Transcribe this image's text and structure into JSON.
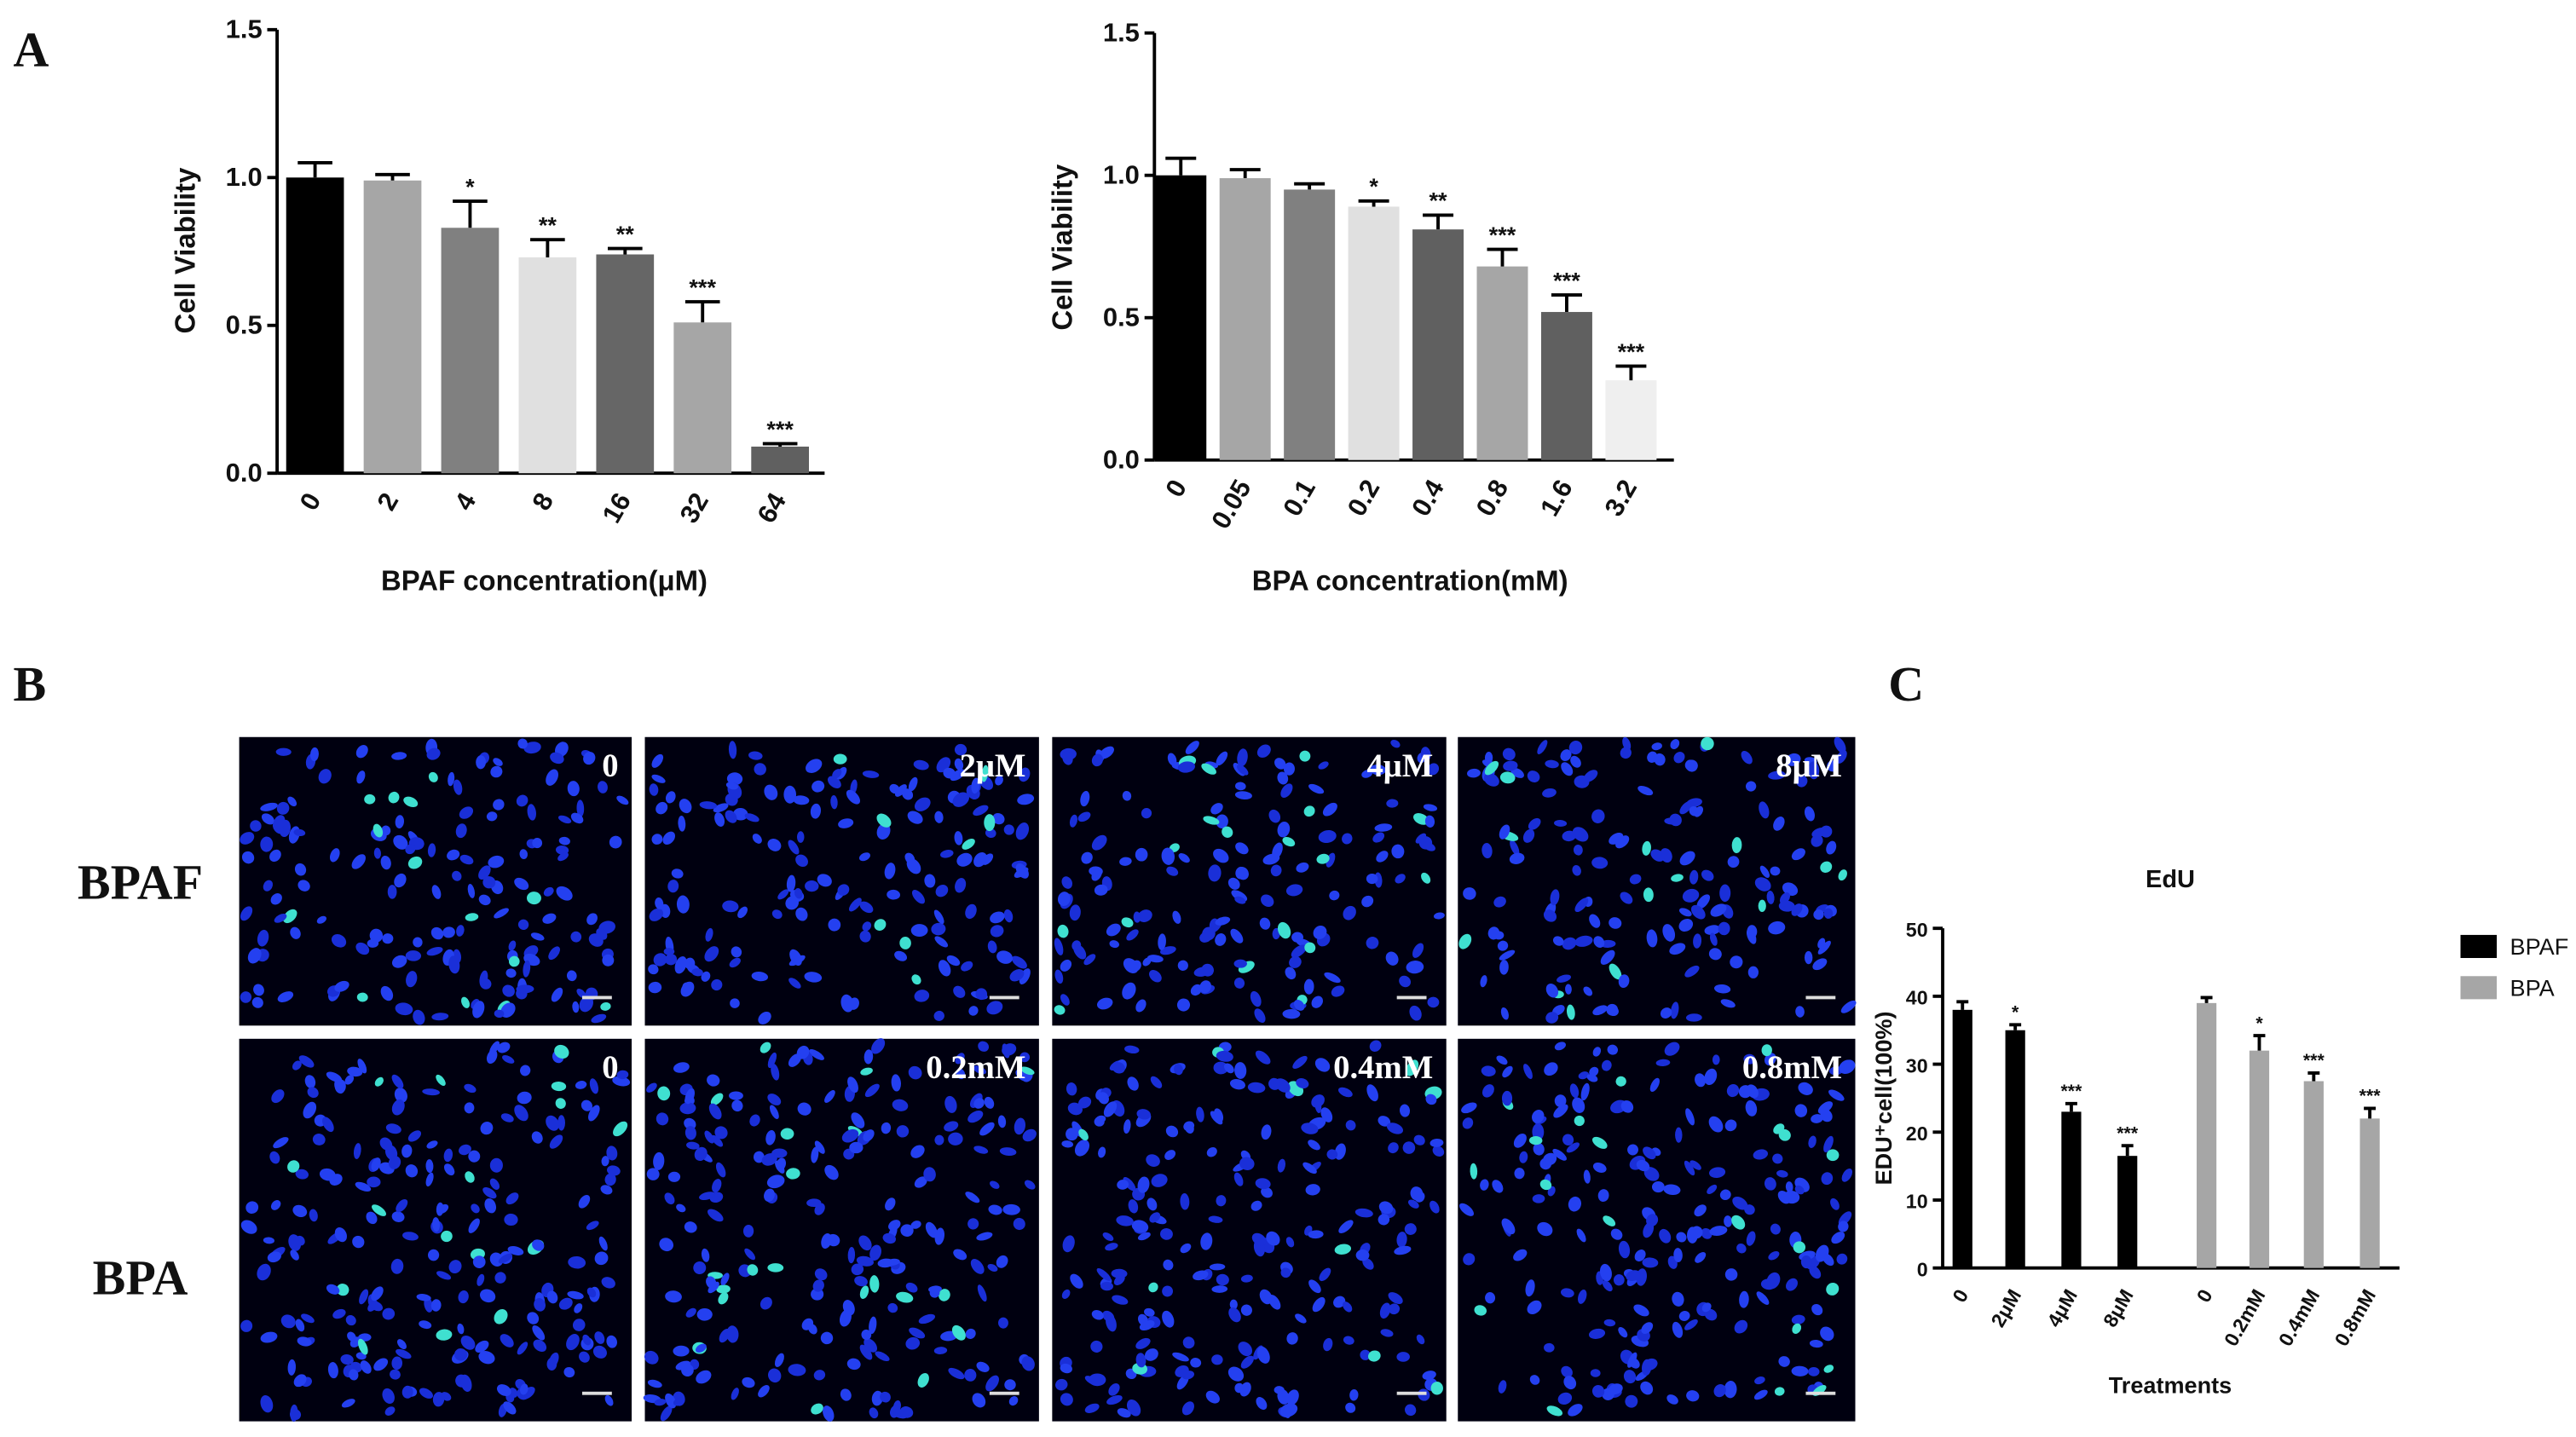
{
  "figure": {
    "panel_labels": [
      "A",
      "B",
      "C"
    ],
    "row_labels": [
      "BPAF",
      "BPA"
    ],
    "image_labels": [
      [
        "0",
        "2μM",
        "4μM",
        "8μM"
      ],
      [
        "0",
        "0.2mM",
        "0.4mM",
        "0.8mM"
      ]
    ]
  },
  "chart_data": [
    {
      "type": "bar",
      "ylabel": "Cell Viability",
      "xlabel": "BPAF concentration(μM)",
      "categories": [
        "0",
        "2",
        "4",
        "8",
        "16",
        "32",
        "64"
      ],
      "values": [
        1.0,
        0.99,
        0.83,
        0.73,
        0.74,
        0.51,
        0.09
      ],
      "errors": [
        0.05,
        0.02,
        0.09,
        0.06,
        0.02,
        0.07,
        0.01
      ],
      "significance": [
        null,
        null,
        "*",
        "**",
        "**",
        "***",
        "***"
      ],
      "colors": [
        "#000000",
        "#a6a6a6",
        "#808080",
        "#e0e0e0",
        "#666666",
        "#a6a6a6",
        "#606060"
      ],
      "ylim": [
        0,
        1.5
      ],
      "yticks": [
        {
          "value": 0,
          "label": "0.0"
        },
        0.5,
        {
          "value": 1,
          "label": "1.0"
        },
        1.5
      ]
    },
    {
      "type": "bar",
      "ylabel": "Cell Viability",
      "xlabel": "BPA concentration(mM)",
      "categories": [
        "0",
        "0.05",
        "0.1",
        "0.2",
        "0.4",
        "0.8",
        "1.6",
        "3.2"
      ],
      "values": [
        1.0,
        0.99,
        0.95,
        0.89,
        0.81,
        0.68,
        0.52,
        0.28
      ],
      "errors": [
        0.06,
        0.03,
        0.02,
        0.02,
        0.05,
        0.06,
        0.06,
        0.05
      ],
      "significance": [
        null,
        null,
        null,
        "*",
        "**",
        "***",
        "***",
        "***"
      ],
      "colors": [
        "#000000",
        "#a6a6a6",
        "#808080",
        "#e0e0e0",
        "#606060",
        "#a6a6a6",
        "#606060",
        "#efefef"
      ],
      "ylim": [
        0,
        1.5
      ],
      "yticks": [
        {
          "value": 0,
          "label": "0.0"
        },
        0.5,
        {
          "value": 1,
          "label": "1.0"
        },
        1.5
      ]
    },
    {
      "type": "bar",
      "title": "EdU",
      "ylabel": "EDU⁺cell(100%)",
      "xlabel": "Treatments",
      "categories": [
        "0",
        "2μM",
        "4μM",
        "8μM",
        "0",
        "0.2mM",
        "0.4mM",
        "0.8mM"
      ],
      "series": [
        {
          "name": "BPAF",
          "color": "#000000",
          "values": [
            38,
            35,
            23,
            16.5,
            null,
            null,
            null,
            null
          ],
          "errors": [
            1.2,
            0.8,
            1.2,
            1.5,
            null,
            null,
            null,
            null
          ],
          "significance": [
            null,
            "*",
            "***",
            "***",
            null,
            null,
            null,
            null
          ]
        },
        {
          "name": "BPA",
          "color": "#a6a6a6",
          "values": [
            null,
            null,
            null,
            null,
            39,
            32,
            27.5,
            22
          ],
          "errors": [
            null,
            null,
            null,
            null,
            0.8,
            2.2,
            1.2,
            1.5
          ],
          "significance": [
            null,
            null,
            null,
            null,
            null,
            "*",
            "***",
            "***"
          ]
        }
      ],
      "ylim": [
        0,
        50
      ],
      "yticks": [
        0,
        10,
        20,
        30,
        40,
        50
      ]
    }
  ]
}
